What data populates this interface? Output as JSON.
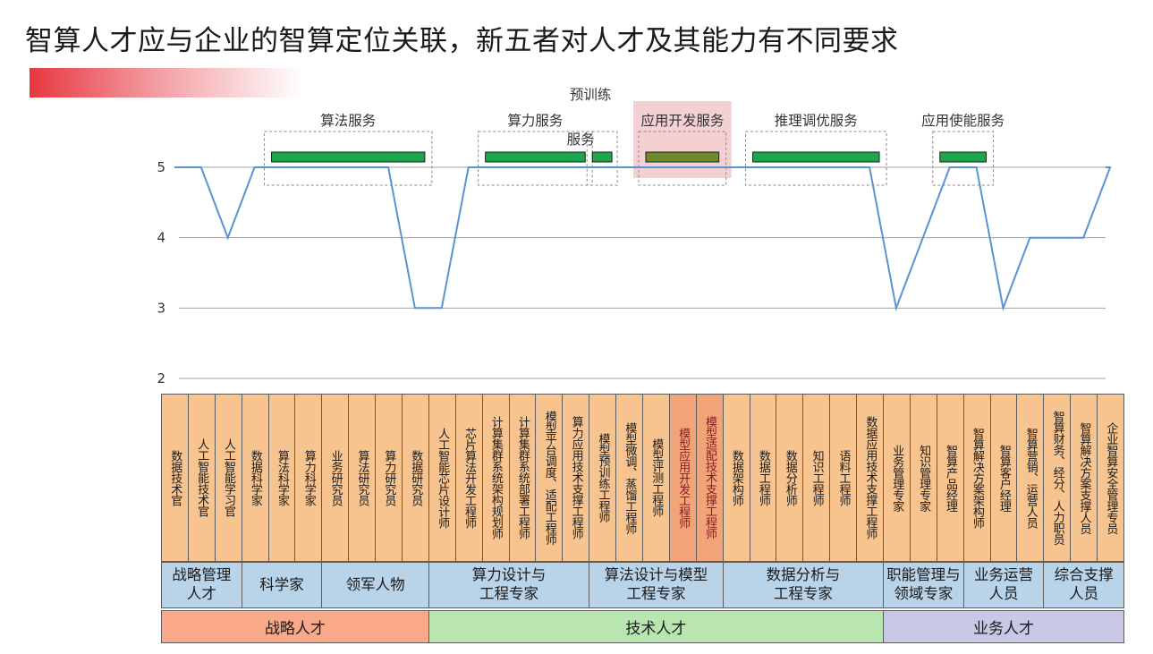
{
  "title": "智算人才应与企业的智算定位关联，新五者对人才及其能力有不同要求",
  "colors": {
    "line": "#5a93d0",
    "service_bar": "#1ba84a",
    "role_cell": "#f7c48f",
    "role_cell_highlight": "#f2a479",
    "group_cell": "#b9d3e8",
    "strategy": "#f7a98a",
    "technical": "#b9e6b0",
    "business": "#c8c8e6"
  },
  "chart_data": {
    "type": "line",
    "y_ticks": [
      "2",
      "3",
      "4",
      "5"
    ],
    "ylim": [
      2,
      5.4
    ],
    "grid": true,
    "x": [
      "",
      "数据技术官",
      "人工智能技术官",
      "人工智能学习官",
      "数据科学家",
      "算法科学家",
      "算力科学家",
      "业务研究员",
      "算法研究员",
      "算力研究员",
      "数据研究员",
      "人工智能芯片设计师",
      "芯片算法开发工程师",
      "计算集群系统架构规划师",
      "计算集群系统部署工程师",
      "模型平台调度、适配工程师",
      "算力应用技术支撑工程师",
      "模型预训练工程师",
      "模型微调、蒸馏工程师",
      "模型评测工程师",
      "模型应用开发工程师",
      "模型适配技术支撑工程师",
      "数据架构师",
      "数据工程师",
      "数据分析师",
      "知识工程师",
      "语料工程师",
      "数据应用技术支撑工程师",
      "业务管理专家",
      "知识管理专家",
      "智算产品经理",
      "智算解决方案架构师",
      "智算客户经理",
      "智算营销、运营人员",
      "智算财务、经分、人力职员",
      "智算解决方案支撑人员",
      "企业智算安全管理专员",
      ""
    ],
    "series": [
      {
        "values": [
          5,
          5,
          5,
          4,
          5,
          5,
          5,
          5,
          5,
          5,
          3,
          3,
          5,
          5,
          5,
          5,
          5,
          5,
          5,
          5,
          5,
          5,
          5,
          5,
          5,
          5,
          5,
          5,
          3,
          4,
          5,
          5,
          3,
          4,
          4,
          4,
          5,
          5
        ]
      }
    ],
    "services": [
      {
        "label": "算法服务",
        "start": 4,
        "end": 9
      },
      {
        "label": "算力服务",
        "start": 12,
        "end": 15
      },
      {
        "label": "预训练",
        "label2": "服务",
        "start": 16,
        "end": 16
      },
      {
        "label": "应用开发服务",
        "start": 18,
        "end": 20,
        "highlight": true
      },
      {
        "label": "推理调优服务",
        "start": 22,
        "end": 26
      },
      {
        "label": "应用使能服务",
        "start": 29,
        "end": 30
      }
    ],
    "roles": [
      "数据技术官",
      "人工智能技术官",
      "人工智能学习官",
      "数据科学家",
      "算法科学家",
      "算力科学家",
      "业务研究员",
      "算法研究员",
      "算力研究员",
      "数据研究员",
      "人工智能芯片设计师",
      "芯片算法开发工程师",
      "计算集群系统架构规划师",
      "计算集群系统部署工程师",
      "模型平台调度、适配工程师",
      "算力应用技术支撑工程师",
      "模型预训练工程师",
      "模型微调、蒸馏工程师",
      "模型评测工程师",
      "模型应用开发工程师",
      "模型适配技术支撑工程师",
      "数据架构师",
      "数据工程师",
      "数据分析师",
      "知识工程师",
      "语料工程师",
      "数据应用技术支撑工程师",
      "业务管理专家",
      "知识管理专家",
      "智算产品经理",
      "智算解决方案架构师",
      "智算客户经理",
      "智算营销、运营人员",
      "智算财务、经分、人力职员",
      "智算解决方案支撑人员",
      "企业智算安全管理专员"
    ],
    "highlight_roles": [
      19,
      20
    ],
    "groups": [
      {
        "label": "战略管理\n人才",
        "start": 0,
        "end": 2
      },
      {
        "label": "科学家",
        "start": 3,
        "end": 5
      },
      {
        "label": "领军人物",
        "start": 6,
        "end": 9
      },
      {
        "label": "算力设计与\n工程专家",
        "start": 10,
        "end": 15
      },
      {
        "label": "算法设计与模型\n工程专家",
        "start": 16,
        "end": 20
      },
      {
        "label": "数据分析与\n工程专家",
        "start": 21,
        "end": 26
      },
      {
        "label": "职能管理与\n领域专家",
        "start": 27,
        "end": 29
      },
      {
        "label": "业务运营\n人员",
        "start": 30,
        "end": 32
      },
      {
        "label": "综合支撑\n人员",
        "start": 33,
        "end": 35
      }
    ],
    "categories": [
      {
        "label": "战略人才",
        "start": 0,
        "end": 9,
        "color": "#f7a98a"
      },
      {
        "label": "技术人才",
        "start": 10,
        "end": 26,
        "color": "#b9e6b0"
      },
      {
        "label": "业务人才",
        "start": 27,
        "end": 35,
        "color": "#c8c8e6"
      }
    ]
  }
}
